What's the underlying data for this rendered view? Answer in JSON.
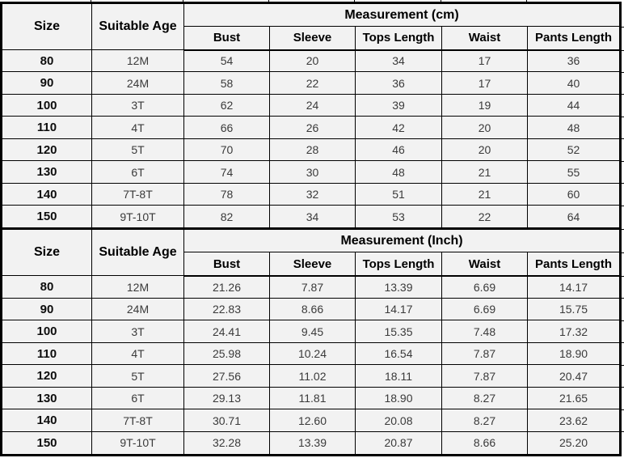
{
  "colors": {
    "cell_background": "#f2f2f2",
    "grid_border": "#000000",
    "header_text": "#000000",
    "data_text": "#3a3a3a"
  },
  "chart_data": [
    {
      "type": "table",
      "title": "Measurement (cm)",
      "columns": [
        "Size",
        "Suitable Age",
        "Bust",
        "Sleeve",
        "Tops Length",
        "Waist",
        "Pants Length"
      ],
      "rows": [
        [
          "80",
          "12M",
          "54",
          "20",
          "34",
          "17",
          "36"
        ],
        [
          "90",
          "24M",
          "58",
          "22",
          "36",
          "17",
          "40"
        ],
        [
          "100",
          "3T",
          "62",
          "24",
          "39",
          "19",
          "44"
        ],
        [
          "110",
          "4T",
          "66",
          "26",
          "42",
          "20",
          "48"
        ],
        [
          "120",
          "5T",
          "70",
          "28",
          "46",
          "20",
          "52"
        ],
        [
          "130",
          "6T",
          "74",
          "30",
          "48",
          "21",
          "55"
        ],
        [
          "140",
          "7T-8T",
          "78",
          "32",
          "51",
          "21",
          "60"
        ],
        [
          "150",
          "9T-10T",
          "82",
          "34",
          "53",
          "22",
          "64"
        ]
      ]
    },
    {
      "type": "table",
      "title": "Measurement (Inch)",
      "columns": [
        "Size",
        "Suitable Age",
        "Bust",
        "Sleeve",
        "Tops Length",
        "Waist",
        "Pants Length"
      ],
      "rows": [
        [
          "80",
          "12M",
          "21.26",
          "7.87",
          "13.39",
          "6.69",
          "14.17"
        ],
        [
          "90",
          "24M",
          "22.83",
          "8.66",
          "14.17",
          "6.69",
          "15.75"
        ],
        [
          "100",
          "3T",
          "24.41",
          "9.45",
          "15.35",
          "7.48",
          "17.32"
        ],
        [
          "110",
          "4T",
          "25.98",
          "10.24",
          "16.54",
          "7.87",
          "18.90"
        ],
        [
          "120",
          "5T",
          "27.56",
          "11.02",
          "18.11",
          "7.87",
          "20.47"
        ],
        [
          "130",
          "6T",
          "29.13",
          "11.81",
          "18.90",
          "8.27",
          "21.65"
        ],
        [
          "140",
          "7T-8T",
          "30.71",
          "12.60",
          "20.08",
          "8.27",
          "23.62"
        ],
        [
          "150",
          "9T-10T",
          "32.28",
          "13.39",
          "20.87",
          "8.66",
          "25.20"
        ]
      ]
    }
  ]
}
